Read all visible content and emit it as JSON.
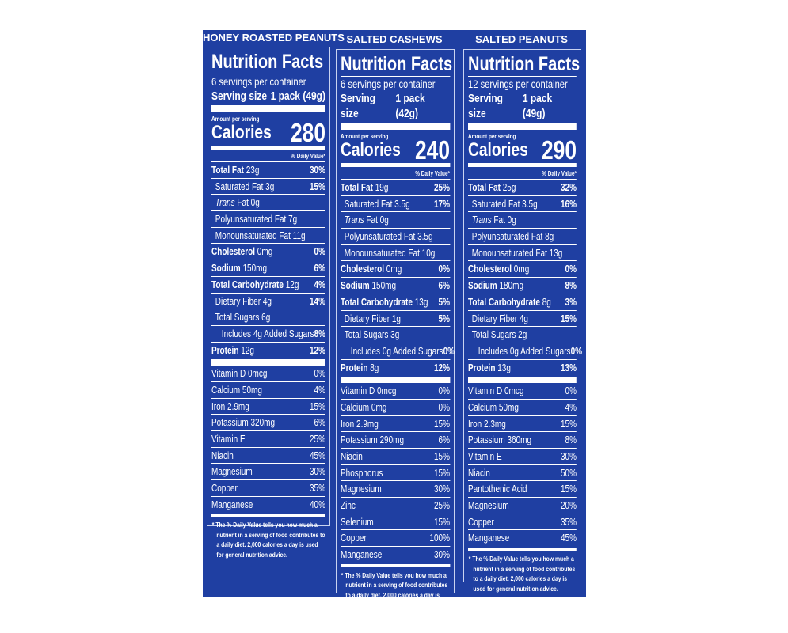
{
  "colors": {
    "background": "#1f3fa2",
    "text": "#ffffff"
  },
  "common": {
    "title": "Nutrition Facts",
    "serving_size_label": "Serving size",
    "amount_per_serving": "Amount per serving",
    "calories_label": "Calories",
    "dv_header": "% Daily Value*",
    "footnote": "* The % Daily Value tells you how much a nutrient in a serving of food contributes to a daily diet. 2,000 calories a day is used for general nutrition advice."
  },
  "panels": [
    {
      "product": "HONEY ROASTED PEANUTS",
      "servings": "6 servings per container",
      "serving_size": "1 pack (49g)",
      "calories": "280",
      "nutrients": [
        {
          "name": "Total Fat",
          "amount": "23g",
          "dv": "30%",
          "bold": true,
          "indent": 0
        },
        {
          "name": "Saturated Fat 3g",
          "amount": "",
          "dv": "15%",
          "indent": 1
        },
        {
          "name": "Trans",
          "amount": "Fat 0g",
          "dv": "",
          "indent": 1,
          "italic": true
        },
        {
          "name": "Polyunsaturated Fat 7g",
          "amount": "",
          "dv": "",
          "indent": 1
        },
        {
          "name": "Monounsaturated Fat 11g",
          "amount": "",
          "dv": "",
          "indent": 1
        },
        {
          "name": "Cholesterol",
          "amount": "0mg",
          "dv": "0%",
          "bold": true,
          "indent": 0
        },
        {
          "name": "Sodium",
          "amount": "150mg",
          "dv": "6%",
          "bold": true,
          "indent": 0
        },
        {
          "name": "Total Carbohydrate",
          "amount": "12g",
          "dv": "4%",
          "bold": true,
          "indent": 0
        },
        {
          "name": "Dietary Fiber 4g",
          "amount": "",
          "dv": "14%",
          "indent": 1
        },
        {
          "name": "Total Sugars 6g",
          "amount": "",
          "dv": "",
          "indent": 1
        },
        {
          "name": "Includes 4g Added Sugars",
          "amount": "",
          "dv": "8%",
          "indent": 2
        },
        {
          "name": "Protein",
          "amount": "12g",
          "dv": "12%",
          "bold": true,
          "indent": 0,
          "last": true
        }
      ],
      "vitamins": [
        [
          "Vitamin D 0mcg",
          "0%"
        ],
        [
          "Calcium 50mg",
          "4%"
        ],
        [
          "Iron 2.9mg",
          "15%"
        ],
        [
          "Potassium 320mg",
          "6%"
        ],
        [
          "Vitamin E",
          "25%"
        ],
        [
          "Niacin",
          "45%"
        ],
        [
          "Magnesium",
          "30%"
        ],
        [
          "Copper",
          "35%"
        ],
        [
          "Manganese",
          "40%"
        ]
      ]
    },
    {
      "product": "SALTED CASHEWS",
      "servings": "6 servings per container",
      "serving_size": "1 pack (42g)",
      "calories": "240",
      "nutrients": [
        {
          "name": "Total Fat",
          "amount": "19g",
          "dv": "25%",
          "bold": true,
          "indent": 0
        },
        {
          "name": "Saturated Fat 3.5g",
          "amount": "",
          "dv": "17%",
          "indent": 1
        },
        {
          "name": "Trans",
          "amount": "Fat 0g",
          "dv": "",
          "indent": 1,
          "italic": true
        },
        {
          "name": "Polyunsaturated Fat 3.5g",
          "amount": "",
          "dv": "",
          "indent": 1
        },
        {
          "name": "Monounsaturated Fat 10g",
          "amount": "",
          "dv": "",
          "indent": 1
        },
        {
          "name": "Cholesterol",
          "amount": "0mg",
          "dv": "0%",
          "bold": true,
          "indent": 0
        },
        {
          "name": "Sodium",
          "amount": "150mg",
          "dv": "6%",
          "bold": true,
          "indent": 0
        },
        {
          "name": "Total Carbohydrate",
          "amount": "13g",
          "dv": "5%",
          "bold": true,
          "indent": 0
        },
        {
          "name": "Dietary Fiber 1g",
          "amount": "",
          "dv": "5%",
          "indent": 1
        },
        {
          "name": "Total Sugars 3g",
          "amount": "",
          "dv": "",
          "indent": 1
        },
        {
          "name": "Includes 0g Added Sugars",
          "amount": "",
          "dv": "0%",
          "indent": 2
        },
        {
          "name": "Protein",
          "amount": "8g",
          "dv": "12%",
          "bold": true,
          "indent": 0,
          "last": true
        }
      ],
      "vitamins": [
        [
          "Vitamin D 0mcg",
          "0%"
        ],
        [
          "Calcium 0mg",
          "0%"
        ],
        [
          "Iron 2.9mg",
          "15%"
        ],
        [
          "Potassium 290mg",
          "6%"
        ],
        [
          "Niacin",
          "15%"
        ],
        [
          "Phosphorus",
          "15%"
        ],
        [
          "Magnesium",
          "30%"
        ],
        [
          "Zinc",
          "25%"
        ],
        [
          "Selenium",
          "15%"
        ],
        [
          "Copper",
          "100%"
        ],
        [
          "Manganese",
          "30%"
        ]
      ]
    },
    {
      "product": "SALTED PEANUTS",
      "servings": "12 servings per container",
      "serving_size": "1 pack (49g)",
      "calories": "290",
      "nutrients": [
        {
          "name": "Total Fat",
          "amount": "25g",
          "dv": "32%",
          "bold": true,
          "indent": 0
        },
        {
          "name": "Saturated Fat 3.5g",
          "amount": "",
          "dv": "16%",
          "indent": 1
        },
        {
          "name": "Trans",
          "amount": "Fat 0g",
          "dv": "",
          "indent": 1,
          "italic": true
        },
        {
          "name": "Polyunsaturated Fat 8g",
          "amount": "",
          "dv": "",
          "indent": 1
        },
        {
          "name": "Monounsaturated Fat 13g",
          "amount": "",
          "dv": "",
          "indent": 1
        },
        {
          "name": "Cholesterol",
          "amount": "0mg",
          "dv": "0%",
          "bold": true,
          "indent": 0
        },
        {
          "name": "Sodium",
          "amount": "180mg",
          "dv": "8%",
          "bold": true,
          "indent": 0
        },
        {
          "name": "Total Carbohydrate",
          "amount": "8g",
          "dv": "3%",
          "bold": true,
          "indent": 0
        },
        {
          "name": "Dietary Fiber 4g",
          "amount": "",
          "dv": "15%",
          "indent": 1
        },
        {
          "name": "Total Sugars 2g",
          "amount": "",
          "dv": "",
          "indent": 1
        },
        {
          "name": "Includes 0g Added Sugars",
          "amount": "",
          "dv": "0%",
          "indent": 2
        },
        {
          "name": "Protein",
          "amount": "13g",
          "dv": "13%",
          "bold": true,
          "indent": 0,
          "last": true
        }
      ],
      "vitamins": [
        [
          "Vitamin D 0mcg",
          "0%"
        ],
        [
          "Calcium 50mg",
          "4%"
        ],
        [
          "Iron 2.3mg",
          "15%"
        ],
        [
          "Potassium 360mg",
          "8%"
        ],
        [
          "Vitamin E",
          "30%"
        ],
        [
          "Niacin",
          "50%"
        ],
        [
          "Pantothenic Acid",
          "15%"
        ],
        [
          "Magnesium",
          "20%"
        ],
        [
          "Copper",
          "35%"
        ],
        [
          "Manganese",
          "45%"
        ]
      ]
    }
  ]
}
